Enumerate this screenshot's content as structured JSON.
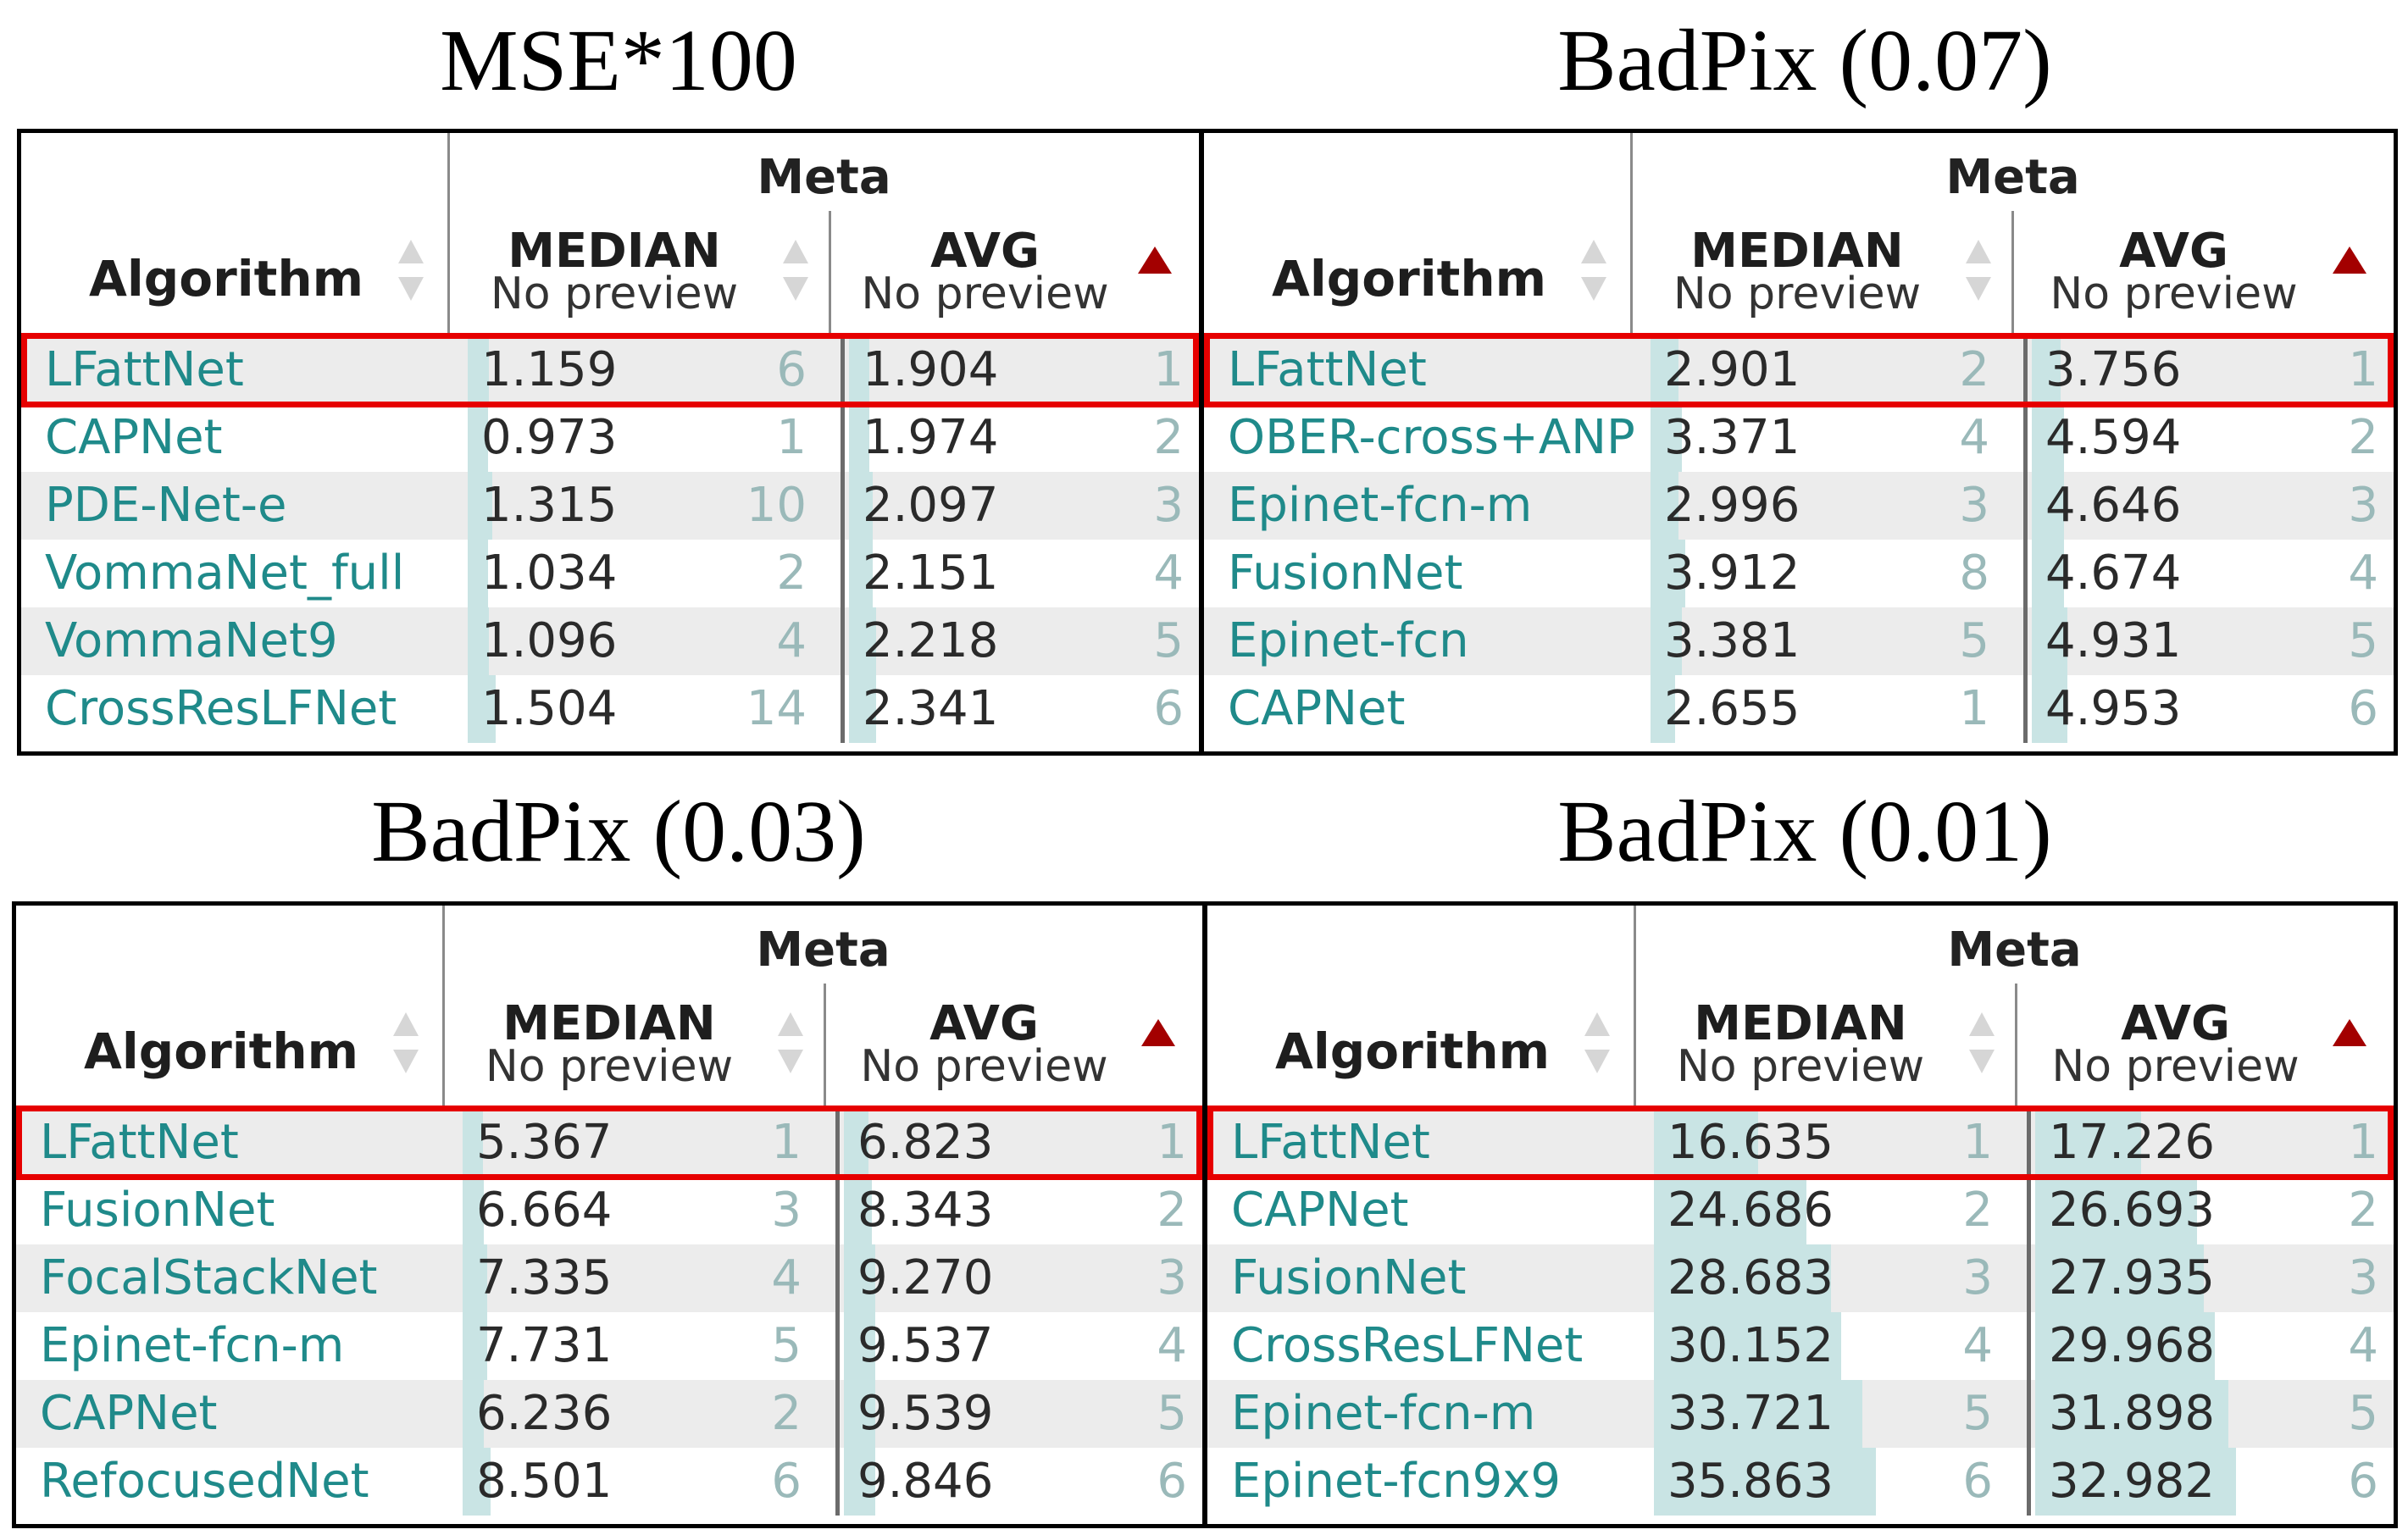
{
  "titles": {
    "mse": "MSE*100",
    "bp07": "BadPix (0.07)",
    "bp03": "BadPix (0.03)",
    "bp01": "BadPix (0.01)"
  },
  "header": {
    "meta": "Meta",
    "algorithm": "Algorithm",
    "median": "MEDIAN",
    "avg": "AVG",
    "no_preview": "No preview"
  },
  "leaderboards": {
    "mse": [
      {
        "alg": "LFattNet",
        "median": "1.159",
        "median_rank": "6",
        "avg": "1.904",
        "avg_rank": "1",
        "median_frac": 0.06,
        "avg_frac": 0.05
      },
      {
        "alg": "CAPNet",
        "median": "0.973",
        "median_rank": "1",
        "avg": "1.974",
        "avg_rank": "2",
        "median_frac": 0.05,
        "avg_frac": 0.06
      },
      {
        "alg": "PDE-Net-e",
        "median": "1.315",
        "median_rank": "10",
        "avg": "2.097",
        "avg_rank": "3",
        "median_frac": 0.07,
        "avg_frac": 0.07
      },
      {
        "alg": "VommaNet_full",
        "median": "1.034",
        "median_rank": "2",
        "avg": "2.151",
        "avg_rank": "4",
        "median_frac": 0.05,
        "avg_frac": 0.07
      },
      {
        "alg": "VommaNet9",
        "median": "1.096",
        "median_rank": "4",
        "avg": "2.218",
        "avg_rank": "5",
        "median_frac": 0.06,
        "avg_frac": 0.08
      },
      {
        "alg": "CrossResLFNet",
        "median": "1.504",
        "median_rank": "14",
        "avg": "2.341",
        "avg_rank": "6",
        "median_frac": 0.08,
        "avg_frac": 0.08
      }
    ],
    "bp07": [
      {
        "alg": "LFattNet",
        "median": "2.901",
        "median_rank": "2",
        "avg": "3.756",
        "avg_rank": "1",
        "median_frac": 0.08,
        "avg_frac": 0.08
      },
      {
        "alg": "OBER-cross+ANP",
        "median": "3.371",
        "median_rank": "4",
        "avg": "4.594",
        "avg_rank": "2",
        "median_frac": 0.09,
        "avg_frac": 0.09
      },
      {
        "alg": "Epinet-fcn-m",
        "median": "2.996",
        "median_rank": "3",
        "avg": "4.646",
        "avg_rank": "3",
        "median_frac": 0.08,
        "avg_frac": 0.09
      },
      {
        "alg": "FusionNet",
        "median": "3.912",
        "median_rank": "8",
        "avg": "4.674",
        "avg_rank": "4",
        "median_frac": 0.1,
        "avg_frac": 0.09
      },
      {
        "alg": "Epinet-fcn",
        "median": "3.381",
        "median_rank": "5",
        "avg": "4.931",
        "avg_rank": "5",
        "median_frac": 0.09,
        "avg_frac": 0.1
      },
      {
        "alg": "CAPNet",
        "median": "2.655",
        "median_rank": "1",
        "avg": "4.953",
        "avg_rank": "6",
        "median_frac": 0.07,
        "avg_frac": 0.1
      }
    ],
    "bp03": [
      {
        "alg": "LFattNet",
        "median": "5.367",
        "median_rank": "1",
        "avg": "6.823",
        "avg_rank": "1",
        "median_frac": 0.05,
        "avg_frac": 0.07
      },
      {
        "alg": "FusionNet",
        "median": "6.664",
        "median_rank": "3",
        "avg": "8.343",
        "avg_rank": "2",
        "median_frac": 0.06,
        "avg_frac": 0.08
      },
      {
        "alg": "FocalStackNet",
        "median": "7.335",
        "median_rank": "4",
        "avg": "9.270",
        "avg_rank": "3",
        "median_frac": 0.07,
        "avg_frac": 0.09
      },
      {
        "alg": "Epinet-fcn-m",
        "median": "7.731",
        "median_rank": "5",
        "avg": "9.537",
        "avg_rank": "4",
        "median_frac": 0.07,
        "avg_frac": 0.09
      },
      {
        "alg": "CAPNet",
        "median": "6.236",
        "median_rank": "2",
        "avg": "9.539",
        "avg_rank": "5",
        "median_frac": 0.06,
        "avg_frac": 0.09
      },
      {
        "alg": "RefocusedNet",
        "median": "8.501",
        "median_rank": "6",
        "avg": "9.846",
        "avg_rank": "6",
        "median_frac": 0.08,
        "avg_frac": 0.09
      }
    ],
    "bp01": [
      {
        "alg": "LFattNet",
        "median": "16.635",
        "median_rank": "1",
        "avg": "17.226",
        "avg_rank": "1",
        "median_frac": 0.3,
        "avg_frac": 0.3
      },
      {
        "alg": "CAPNet",
        "median": "24.686",
        "median_rank": "2",
        "avg": "26.693",
        "avg_rank": "2",
        "median_frac": 0.44,
        "avg_frac": 0.46
      },
      {
        "alg": "FusionNet",
        "median": "28.683",
        "median_rank": "3",
        "avg": "27.935",
        "avg_rank": "3",
        "median_frac": 0.51,
        "avg_frac": 0.48
      },
      {
        "alg": "CrossResLFNet",
        "median": "30.152",
        "median_rank": "4",
        "avg": "29.968",
        "avg_rank": "4",
        "median_frac": 0.54,
        "avg_frac": 0.51
      },
      {
        "alg": "Epinet-fcn-m",
        "median": "33.721",
        "median_rank": "5",
        "avg": "31.898",
        "avg_rank": "5",
        "median_frac": 0.6,
        "avg_frac": 0.55
      },
      {
        "alg": "Epinet-fcn9x9",
        "median": "35.863",
        "median_rank": "6",
        "avg": "32.982",
        "avg_rank": "6",
        "median_frac": 0.64,
        "avg_frac": 0.57
      }
    ]
  },
  "colors": {
    "link": "#1f8a8a",
    "bar": "#c9e4e4",
    "highlight": "#e60000",
    "sort_active": "#a30000"
  }
}
